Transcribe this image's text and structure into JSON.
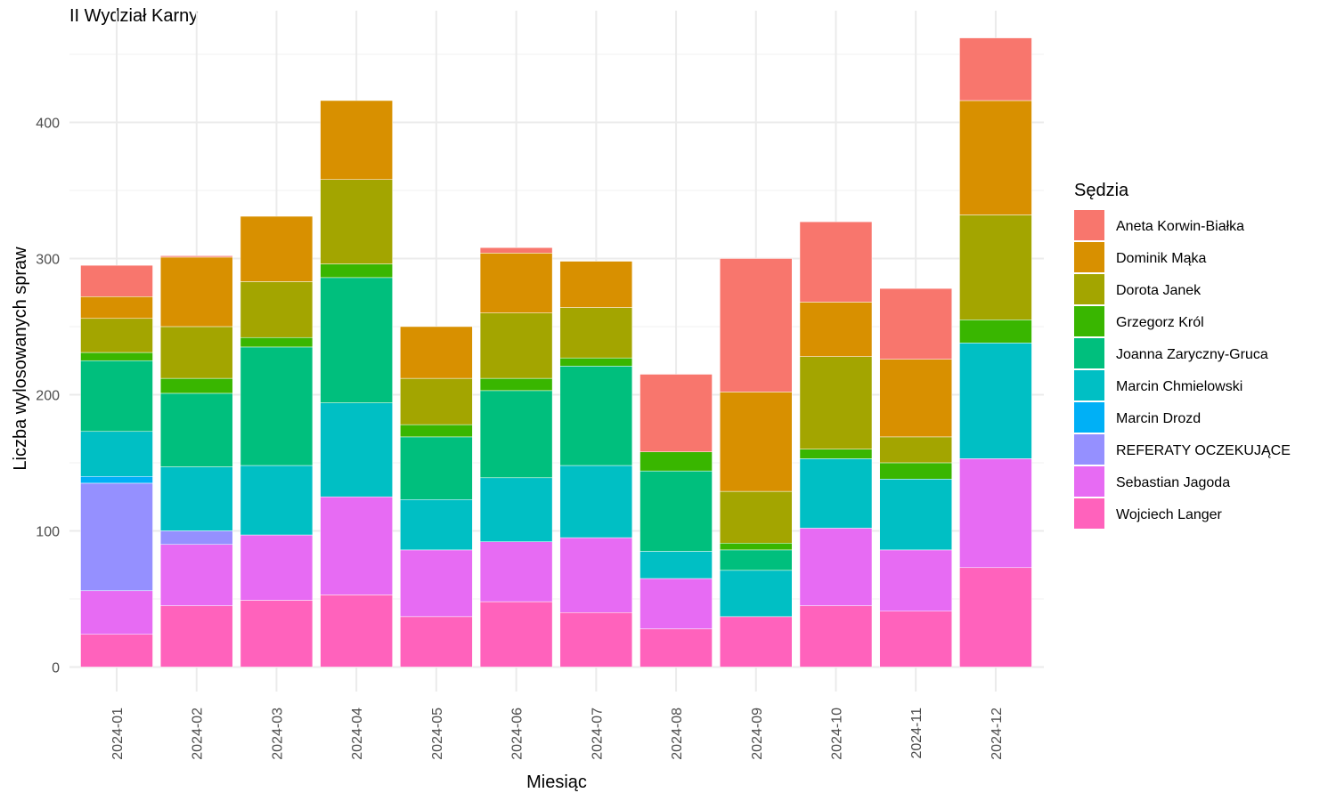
{
  "chart_data": {
    "type": "bar",
    "stacked": true,
    "title": "II Wydział Karny",
    "xlabel": "Miesiąc",
    "ylabel": "Liczba wylosowanych spraw",
    "ylim": [
      -18,
      482
    ],
    "yticks": [
      0,
      100,
      200,
      300,
      400
    ],
    "grid": true,
    "legend": {
      "title": "Sędzia",
      "position": "right"
    },
    "categories": [
      "2024-01",
      "2024-02",
      "2024-03",
      "2024-04",
      "2024-05",
      "2024-06",
      "2024-07",
      "2024-08",
      "2024-09",
      "2024-10",
      "2024-11",
      "2024-12"
    ],
    "series": [
      {
        "name": "Aneta Korwin-Białka",
        "color": "#F8766D",
        "values": [
          23,
          1,
          0,
          0,
          0,
          4,
          0,
          57,
          98,
          59,
          52,
          46
        ]
      },
      {
        "name": "Dominik Mąka",
        "color": "#D89000",
        "values": [
          16,
          51,
          48,
          58,
          38,
          44,
          34,
          0,
          73,
          40,
          57,
          84
        ]
      },
      {
        "name": "Dorota Janek",
        "color": "#A3A500",
        "values": [
          25,
          38,
          41,
          62,
          34,
          48,
          37,
          0,
          38,
          68,
          19,
          77
        ]
      },
      {
        "name": "Grzegorz Król",
        "color": "#39B600",
        "values": [
          6,
          11,
          7,
          10,
          9,
          9,
          6,
          14,
          5,
          7,
          12,
          17
        ]
      },
      {
        "name": "Joanna Zaryczny-Gruca",
        "color": "#00BF7D",
        "values": [
          52,
          54,
          87,
          92,
          46,
          64,
          73,
          59,
          15,
          0,
          0,
          0
        ]
      },
      {
        "name": "Marcin Chmielowski",
        "color": "#00BFC4",
        "values": [
          33,
          47,
          51,
          69,
          37,
          47,
          53,
          20,
          34,
          51,
          52,
          85
        ]
      },
      {
        "name": "Marcin Drozd",
        "color": "#00B0F6",
        "values": [
          5,
          0,
          0,
          0,
          0,
          0,
          0,
          0,
          0,
          0,
          0,
          0
        ]
      },
      {
        "name": "REFERATY OCZEKUJĄCE",
        "color": "#9590FF",
        "values": [
          79,
          10,
          0,
          0,
          0,
          0,
          0,
          0,
          0,
          0,
          0,
          0
        ]
      },
      {
        "name": "Sebastian Jagoda",
        "color": "#E76BF3",
        "values": [
          32,
          45,
          48,
          72,
          49,
          44,
          55,
          37,
          0,
          57,
          45,
          80
        ]
      },
      {
        "name": "Wojciech Langer",
        "color": "#FF62BC",
        "values": [
          24,
          45,
          49,
          53,
          37,
          48,
          40,
          28,
          37,
          45,
          41,
          73
        ]
      }
    ]
  }
}
